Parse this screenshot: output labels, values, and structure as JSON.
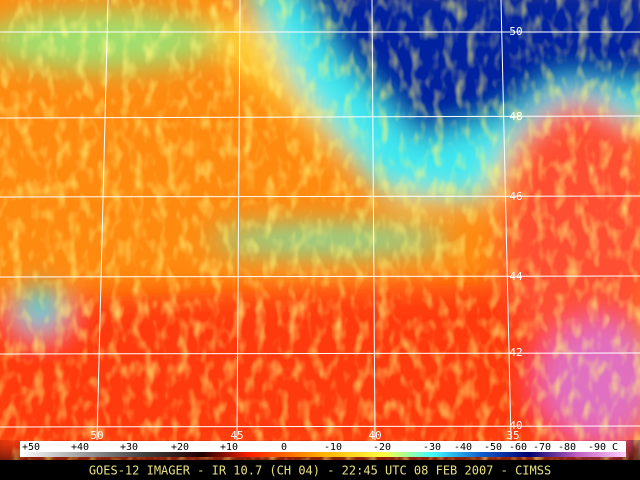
{
  "map": {
    "latitude_labels": [
      "50",
      "48",
      "46",
      "44",
      "42",
      "40"
    ],
    "longitude_labels": [
      "50",
      "45",
      "40",
      "35"
    ],
    "colorbar": {
      "labels": [
        "+50",
        "+40",
        "+30",
        "+20",
        "+10",
        "0",
        "-10",
        "-20",
        "-30",
        "-40",
        "-50",
        "-60",
        "-70",
        "-80",
        "-90 C"
      ]
    },
    "caption": "GOES-12 IMAGER - IR 10.7 (CH 04) - 22:45 UTC 08 FEB 2007 - CIMSS"
  }
}
